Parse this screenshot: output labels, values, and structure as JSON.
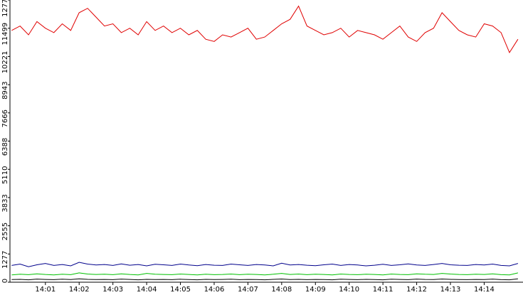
{
  "chart_data": {
    "type": "line",
    "xlim": [
      -0.05,
      15.15
    ],
    "xticks": [
      {
        "value": 1,
        "label": "14:01"
      },
      {
        "value": 2,
        "label": "14:02"
      },
      {
        "value": 3,
        "label": "14:03"
      },
      {
        "value": 4,
        "label": "14:04"
      },
      {
        "value": 5,
        "label": "14:05"
      },
      {
        "value": 6,
        "label": "14:06"
      },
      {
        "value": 7,
        "label": "14:07"
      },
      {
        "value": 8,
        "label": "14:08"
      },
      {
        "value": 9,
        "label": "14:09"
      },
      {
        "value": 10,
        "label": "14:10"
      },
      {
        "value": 11,
        "label": "14:11"
      },
      {
        "value": 12,
        "label": "14:12"
      },
      {
        "value": 13,
        "label": "14:13"
      },
      {
        "value": 14,
        "label": "14:14"
      }
    ],
    "ylim": [
      0,
      12777
    ],
    "yticks": [
      0,
      1277,
      2555,
      3833,
      5110,
      6388,
      7666,
      8943,
      10221,
      11499,
      12777
    ],
    "x": [
      0,
      0.25,
      0.5,
      0.75,
      1,
      1.25,
      1.5,
      1.75,
      2,
      2.25,
      2.5,
      2.75,
      3,
      3.25,
      3.5,
      3.75,
      4,
      4.25,
      4.5,
      4.75,
      5,
      5.25,
      5.5,
      5.75,
      6,
      6.25,
      6.5,
      6.75,
      7,
      7.25,
      7.5,
      7.75,
      8,
      8.25,
      8.5,
      8.75,
      9,
      9.25,
      9.5,
      9.75,
      10,
      10.25,
      10.5,
      10.75,
      11,
      11.25,
      11.5,
      11.75,
      12,
      12.25,
      12.5,
      12.75,
      13,
      13.25,
      13.5,
      13.75,
      14,
      14.25,
      14.5,
      14.75,
      15
    ],
    "series": [
      {
        "name": "red",
        "color": "#e00000",
        "values": [
          11400,
          11600,
          11200,
          11800,
          11500,
          11300,
          11700,
          11400,
          12200,
          12400,
          12000,
          11600,
          11700,
          11300,
          11500,
          11200,
          11800,
          11400,
          11600,
          11300,
          11500,
          11200,
          11400,
          11000,
          10900,
          11200,
          11100,
          11300,
          11500,
          11000,
          11100,
          11400,
          11700,
          11900,
          12500,
          11600,
          11400,
          11200,
          11300,
          11500,
          11100,
          11400,
          11300,
          11200,
          11000,
          11300,
          11600,
          11100,
          10900,
          11300,
          11500,
          12200,
          11800,
          11400,
          11200,
          11100,
          11700,
          11600,
          11300,
          10400,
          11000
        ]
      },
      {
        "name": "blue",
        "color": "#00008b",
        "values": [
          760,
          820,
          700,
          790,
          850,
          760,
          800,
          740,
          900,
          820,
          780,
          800,
          760,
          830,
          770,
          800,
          740,
          810,
          790,
          760,
          820,
          780,
          750,
          800,
          770,
          760,
          820,
          790,
          760,
          800,
          780,
          740,
          860,
          780,
          800,
          770,
          750,
          790,
          820,
          760,
          800,
          780,
          740,
          770,
          810,
          760,
          790,
          830,
          780,
          760,
          800,
          850,
          790,
          770,
          760,
          800,
          780,
          820,
          760,
          740,
          850
        ]
      },
      {
        "name": "green",
        "color": "#00c000",
        "values": [
          330,
          360,
          340,
          380,
          350,
          330,
          360,
          340,
          420,
          370,
          350,
          360,
          340,
          380,
          350,
          330,
          400,
          360,
          350,
          340,
          370,
          350,
          330,
          360,
          340,
          350,
          370,
          340,
          360,
          350,
          330,
          360,
          400,
          350,
          370,
          340,
          360,
          350,
          330,
          370,
          350,
          340,
          360,
          350,
          330,
          370,
          350,
          340,
          380,
          360,
          350,
          400,
          370,
          350,
          340,
          360,
          350,
          380,
          340,
          330,
          420
        ]
      },
      {
        "name": "black",
        "color": "#000000",
        "values": [
          120,
          130,
          110,
          140,
          125,
          115,
          135,
          120,
          150,
          130,
          120,
          125,
          115,
          140,
          125,
          110,
          130,
          120,
          125,
          115,
          135,
          120,
          110,
          130,
          120,
          125,
          135,
          115,
          125,
          120,
          110,
          130,
          145,
          120,
          130,
          115,
          125,
          120,
          110,
          135,
          125,
          115,
          130,
          120,
          110,
          135,
          125,
          115,
          140,
          125,
          120,
          145,
          130,
          120,
          115,
          125,
          120,
          140,
          115,
          110,
          150
        ]
      }
    ]
  }
}
